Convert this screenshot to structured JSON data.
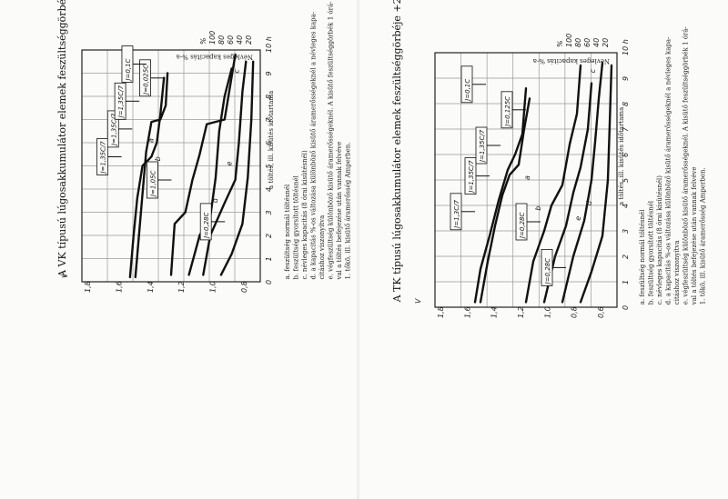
{
  "panels": [
    {
      "id": "vk",
      "title": "A VK típusú lúgosakkumulátor elemek feszültséggörbéje +25 C° elem-hőmérsékletnél:",
      "y_axis_title": "V",
      "x_axis_title": "a töltés, ill. kisütés időtartama",
      "top_axis_title": "Névleges kapacitás %-a",
      "y_ticks": [
        "1,8",
        "1,6",
        "1,4",
        "1,2",
        "1,0",
        "0,8"
      ],
      "x_ticks": [
        "0",
        "1",
        "2",
        "3",
        "4",
        "5",
        "6",
        "7",
        "8",
        "9",
        "10 h"
      ],
      "top_ticks": [
        "20",
        "40",
        "60",
        "80",
        "100",
        "%"
      ],
      "box_labels": [
        "J=1,35C/7",
        "J=1,35C/7",
        "J=1,35C/7",
        "J=1,05C",
        "J=0,28C",
        "J=0,025C",
        "J=0,1C"
      ],
      "curve_letters": [
        "a",
        "b",
        "c",
        "d",
        "e"
      ],
      "legend": [
        "a. feszültség normál töltésnél",
        "b. feszültség gyorsított töltésnél",
        "c. névleges kapacitás (8 órai kisütésnél)",
        "d. a kapacitás %-os változása különböző kisütő áramerősségeknél a névleges kapa-",
        "citáshoz viszonyítva",
        "e. végfeszültség különböző kisütő áramerősségeknél. A kisütő feszültséggörbék 1 órá-",
        "val a töltés befejezése után vannak felvéve",
        "1. tőkö, ill. kisütő áramerősség Amperben."
      ]
    },
    {
      "id": "tk",
      "title": "A TK típusú lúgosakkumulátor elemek feszültséggörbéje +25 C° elem-hőmérsékletnél:",
      "y_axis_title": "V",
      "x_axis_title": "a töltés, ill. kisütés időtartama",
      "top_axis_title": "Névleges kapacitás %-a",
      "y_ticks": [
        "1,8",
        "1,6",
        "1,4",
        "1,2",
        "1,0",
        "0,8",
        "0,6"
      ],
      "x_ticks": [
        "0",
        "1",
        "2",
        "3",
        "4",
        "5",
        "6",
        "7",
        "8",
        "9",
        "10 h"
      ],
      "top_ticks": [
        "20",
        "40",
        "60",
        "80",
        "100",
        "%"
      ],
      "box_labels": [
        "J=1,3C/7",
        "J=1,35C/7",
        "J=1,35C/7",
        "J=0,28C",
        "J=0,28C",
        "J=0,125C",
        "J=0,1C"
      ],
      "curve_letters": [
        "a",
        "b",
        "c",
        "d",
        "e"
      ],
      "legend": [
        "a. feszültség normál töltésnél",
        "b. feszültség gyorsított töltésnél",
        "c. névleges kapacitás (8 órai kisütésnél)",
        "d. a kapacitás %-os változása különböző kisütő áramerősségeknél a névleges kapa-",
        "citáshoz viszonyítva",
        "e. végfeszültség különböző kisütő áramerősségeknél. A kisütő feszültséggörbék 1 órá-",
        "val a töltés befejezése után vannak felvéve",
        "1. tőkö, ill. kisütő áramerősség Amperben."
      ]
    }
  ]
}
